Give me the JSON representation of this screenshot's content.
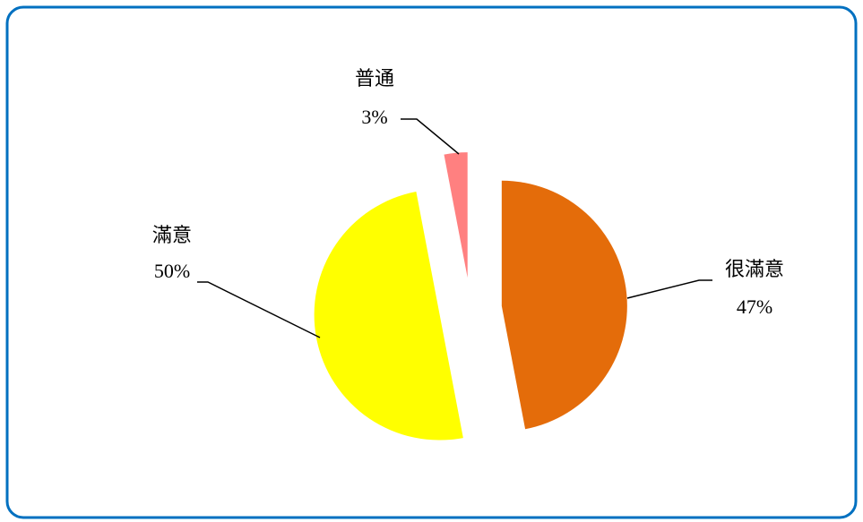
{
  "chart_data": {
    "type": "pie",
    "categories": [
      "很滿意",
      "滿意",
      "普通"
    ],
    "values": [
      47,
      50,
      3
    ],
    "value_labels": [
      "47%",
      "50%",
      "3%"
    ],
    "colors": [
      "#e46c0a",
      "#ffff00",
      "#ff8080"
    ]
  }
}
